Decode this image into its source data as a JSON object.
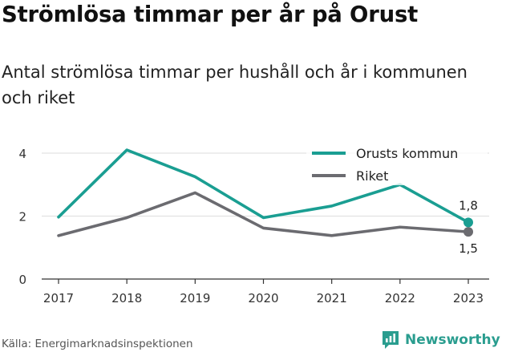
{
  "title": "Strömlösa timmar per år på Orust",
  "subtitle": "Antal strömlösa timmar per hushåll och år i kommunen och riket",
  "source": "Källa: Energimarknadsinspektionen",
  "brand": "Newsworthy",
  "colors": {
    "orust": "#1a9e92",
    "riket": "#6b6b70",
    "grid": "#dddddd",
    "axis": "#333333",
    "brand": "#2a9d8f"
  },
  "chart_data": {
    "type": "line",
    "x": [
      "2017",
      "2018",
      "2019",
      "2020",
      "2021",
      "2022",
      "2023"
    ],
    "ylim": [
      0,
      4.3
    ],
    "yticks": [
      0,
      2,
      4
    ],
    "ytick_labels": [
      "0",
      "2",
      "4"
    ],
    "grid": true,
    "legend_position": "top-right",
    "series": [
      {
        "name": "Orusts kommun",
        "values": [
          1.97,
          4.1,
          3.25,
          1.95,
          2.32,
          3.0,
          1.8
        ],
        "end_label": "1,8"
      },
      {
        "name": "Riket",
        "values": [
          1.38,
          1.95,
          2.74,
          1.62,
          1.38,
          1.65,
          1.5
        ],
        "end_label": "1,5"
      }
    ]
  }
}
